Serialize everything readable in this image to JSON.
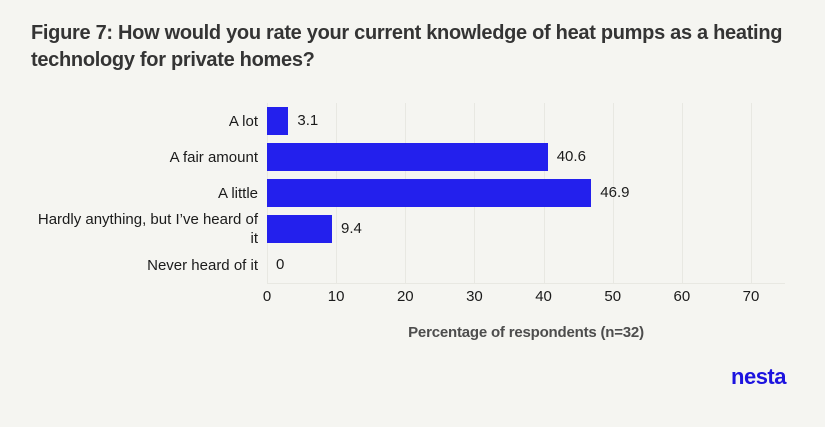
{
  "figure": {
    "title": "Figure 7: How would you rate your current knowledge of heat pumps as a heating technology for private homes?"
  },
  "chart_data": {
    "type": "bar",
    "orientation": "horizontal",
    "title": "Figure 7: How would you rate your current knowledge of heat pumps as a heating technology for private homes?",
    "categories": [
      "A lot",
      "A fair amount",
      "A little",
      "Hardly anything, but I’ve heard of it",
      "Never heard of it"
    ],
    "values": [
      3.1,
      40.6,
      46.9,
      9.4,
      0
    ],
    "value_labels": [
      "3.1",
      "40.6",
      "46.9",
      "9.4",
      "0"
    ],
    "xlabel": "Percentage of respondents (n=32)",
    "ylabel": "",
    "xlim": [
      0,
      70
    ],
    "xticks": [
      0,
      10,
      20,
      30,
      40,
      50,
      60,
      70
    ],
    "grid": "vertical-only",
    "legend": "none",
    "bar_color": "#2320ED"
  },
  "footer": {
    "logo_text": "nesta"
  },
  "colors": {
    "background": "#f5f5f1",
    "bar": "#2320ED",
    "gridline": "#e8e8e2",
    "title_text": "#343434",
    "label_text": "#1b1b1b",
    "axis_title_text": "#4d4d4d",
    "logo": "#1c13df"
  }
}
